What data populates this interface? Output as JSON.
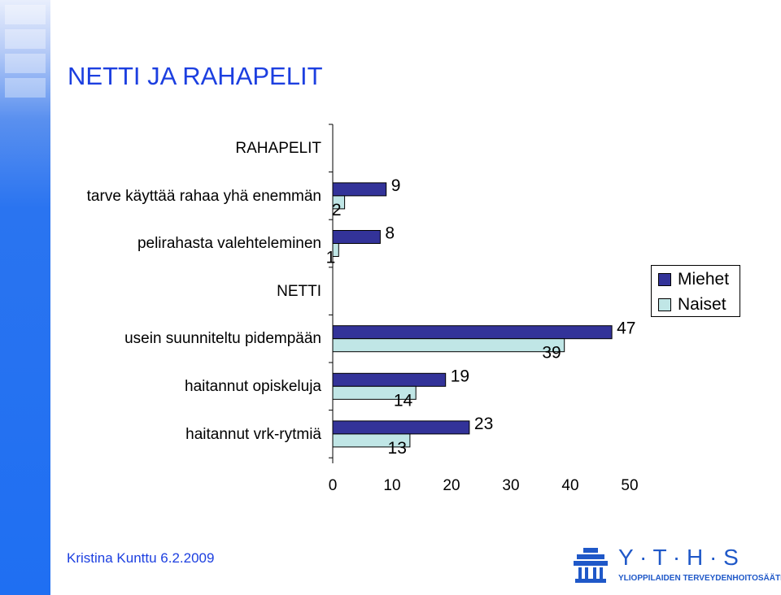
{
  "slide": {
    "title": "NETTI JA RAHAPELIT",
    "footer_author": "Kristina Kunttu 6.2.2009",
    "logo_letters": "Y · T · H · S",
    "logo_subtitle": "YLIOPPILAIDEN TERVEYDENHOITOSÄÄTIÖ"
  },
  "colors": {
    "band": "#1f6ff2",
    "title": "#1c3fe0",
    "miehet": "#333399",
    "naiset": "#c0e6e6"
  },
  "chart_data": {
    "type": "bar",
    "orientation": "horizontal",
    "categories": [
      "RAHAPELIT",
      "tarve käyttää rahaa yhä enemmän",
      "pelirahasta valehteleminen",
      "NETTI",
      "usein suunniteltu pidempään",
      "haitannut opiskeluja",
      "haitannut vrk-rytmiä"
    ],
    "series": [
      {
        "name": "Miehet",
        "values": [
          null,
          9,
          8,
          null,
          47,
          19,
          23
        ]
      },
      {
        "name": "Naiset",
        "values": [
          null,
          2,
          1,
          null,
          39,
          14,
          13
        ]
      }
    ],
    "xlim": [
      0,
      50
    ],
    "xticks": [
      0,
      10,
      20,
      30,
      40,
      50
    ],
    "legend": {
      "position": "right",
      "entries": [
        "Miehet",
        "Naiset"
      ]
    },
    "grid": false
  }
}
